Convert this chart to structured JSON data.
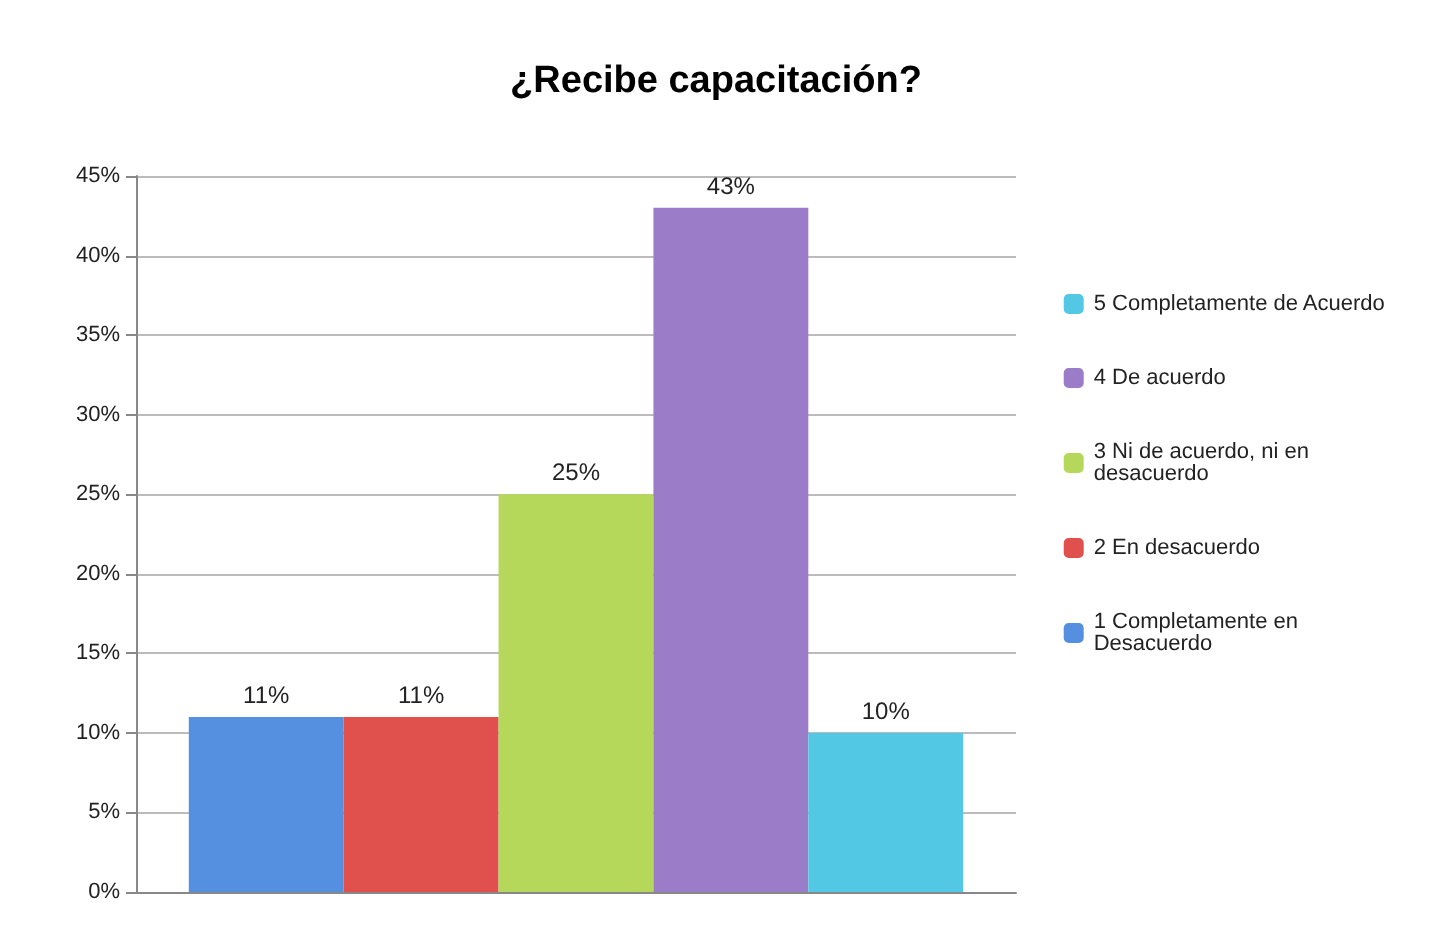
{
  "chart_data": {
    "type": "bar",
    "title": "¿Recibe capacitación?",
    "categories": [
      null
    ],
    "series": [
      {
        "name": "1 Completamente en Desacuerdo",
        "color": "#5590e0",
        "values": [
          11
        ],
        "value_labels": [
          "11%"
        ]
      },
      {
        "name": "2 En desacuerdo",
        "color": "#e0504c",
        "values": [
          11
        ],
        "value_labels": [
          "11%"
        ]
      },
      {
        "name": "3 Ni de acuerdo, ni en desacuerdo",
        "color": "#b5d85a",
        "values": [
          25
        ],
        "value_labels": [
          "25%"
        ]
      },
      {
        "name": "4 De acuerdo",
        "color": "#9a7cc8",
        "values": [
          43
        ],
        "value_labels": [
          "43%"
        ]
      },
      {
        "name": "5 Completamente de Acuerdo",
        "color": "#52c8e4",
        "values": [
          10
        ],
        "value_labels": [
          "10%"
        ]
      }
    ],
    "ylim": [
      0,
      45
    ],
    "yticks": [
      {
        "value": 0,
        "label": "0%"
      },
      {
        "value": 5,
        "label": "5%"
      },
      {
        "value": 10,
        "label": "10%"
      },
      {
        "value": 15,
        "label": "15%"
      },
      {
        "value": 20,
        "label": "20%"
      },
      {
        "value": 25,
        "label": "25%"
      },
      {
        "value": 30,
        "label": "30%"
      },
      {
        "value": 35,
        "label": "35%"
      },
      {
        "value": 40,
        "label": "40%"
      },
      {
        "value": 45,
        "label": "45%"
      }
    ],
    "grid": "y",
    "legend": "right"
  }
}
